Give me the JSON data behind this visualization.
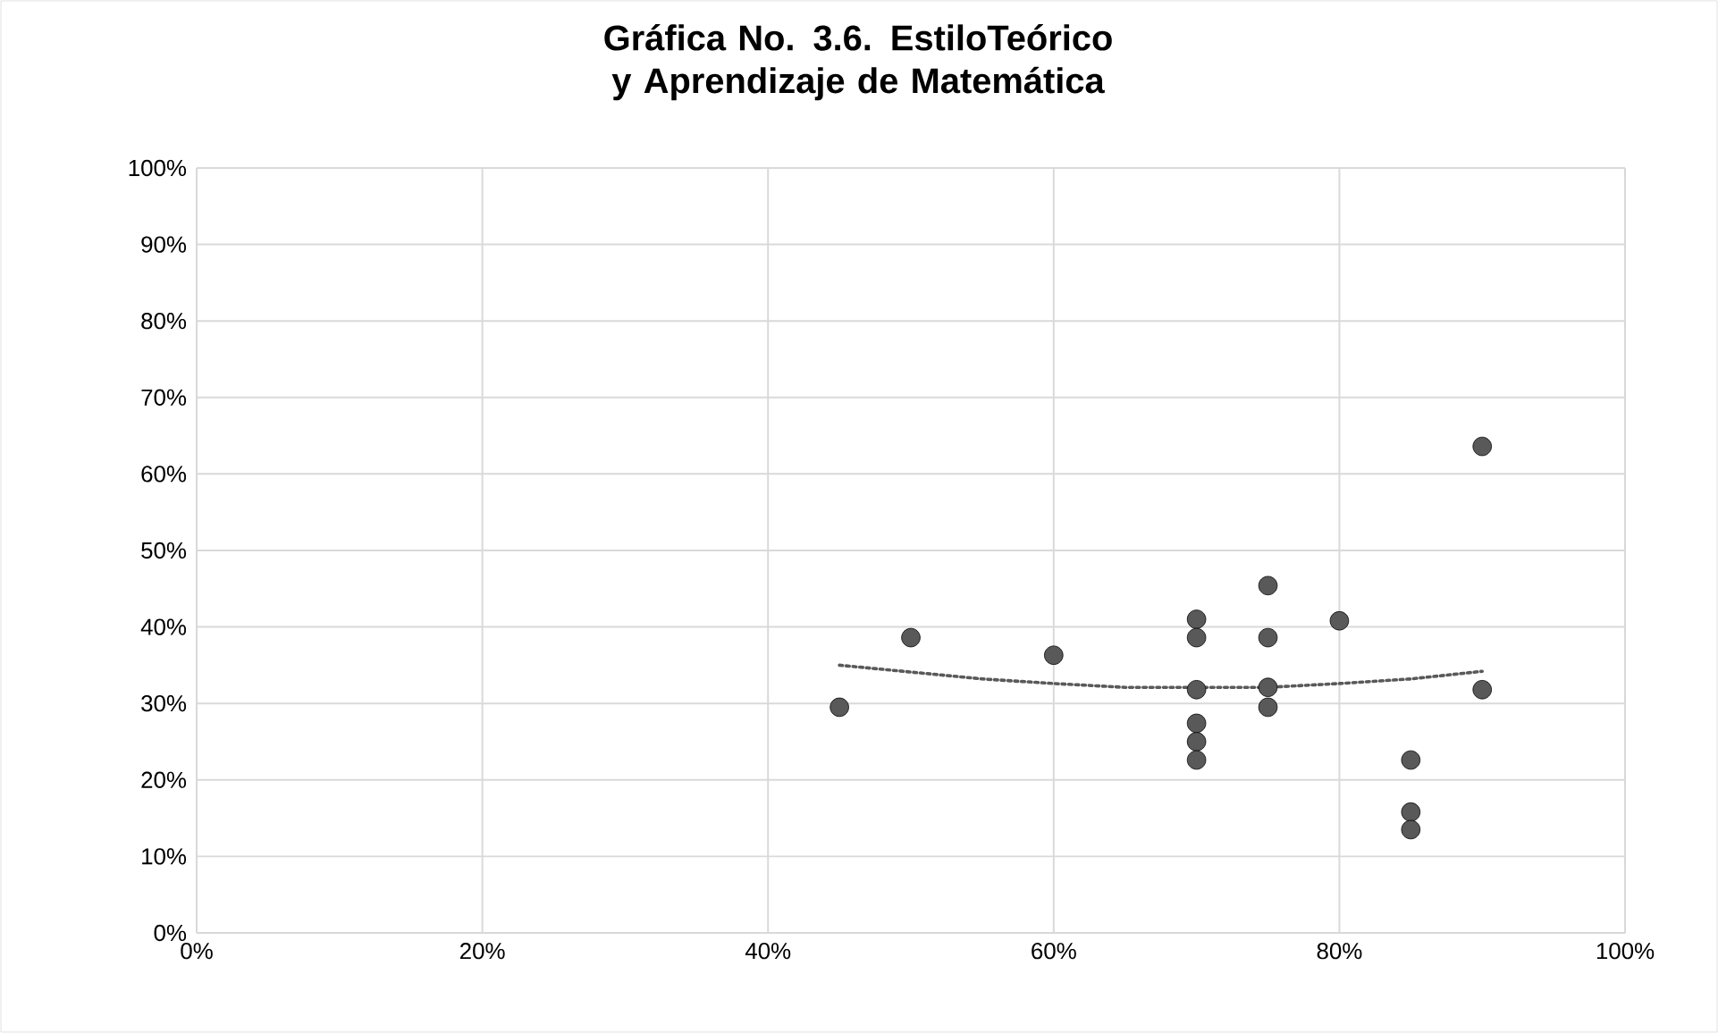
{
  "chart_data": {
    "type": "scatter",
    "title": "Gráfica No. 3.6. EstiloTeórico y Aprendizaje de Matemática",
    "series": [
      {
        "type": "scatter",
        "color": "#595959",
        "marker": "circle",
        "x": [
          45,
          50,
          60,
          70,
          70,
          70,
          70,
          70,
          70,
          75,
          75,
          75,
          75,
          80,
          85,
          85,
          85,
          90,
          90
        ],
        "values": [
          29.5,
          38.6,
          36.3,
          41.0,
          38.6,
          31.8,
          27.4,
          25.0,
          22.6,
          45.4,
          38.6,
          32.1,
          29.5,
          40.8,
          22.6,
          15.8,
          13.5,
          63.6,
          31.8
        ]
      },
      {
        "type": "line",
        "color": "#595959",
        "marker": "none",
        "line_style": "dotted",
        "x": [
          45,
          50,
          55,
          60,
          65,
          70,
          75,
          80,
          85,
          90
        ],
        "values": [
          35.0,
          34.1,
          33.2,
          32.6,
          32.1,
          32.1,
          32.1,
          32.6,
          33.2,
          34.2
        ]
      }
    ],
    "xlim": [
      0,
      100
    ],
    "ylim": [
      0,
      100
    ],
    "xticks": [
      {
        "value": 0,
        "label": "0%"
      },
      {
        "value": 20,
        "label": "20%"
      },
      {
        "value": 40,
        "label": "40%"
      },
      {
        "value": 60,
        "label": "60%"
      },
      {
        "value": 80,
        "label": "80%"
      },
      {
        "value": 100,
        "label": "100%"
      }
    ],
    "yticks": [
      {
        "value": 0,
        "label": "0%"
      },
      {
        "value": 10,
        "label": "10%"
      },
      {
        "value": 20,
        "label": "20%"
      },
      {
        "value": 30,
        "label": "30%"
      },
      {
        "value": 40,
        "label": "40%"
      },
      {
        "value": 50,
        "label": "50%"
      },
      {
        "value": 60,
        "label": "60%"
      },
      {
        "value": 70,
        "label": "70%"
      },
      {
        "value": 80,
        "label": "80%"
      },
      {
        "value": 90,
        "label": "90%"
      },
      {
        "value": 100,
        "label": "100%"
      }
    ],
    "grid": true
  }
}
